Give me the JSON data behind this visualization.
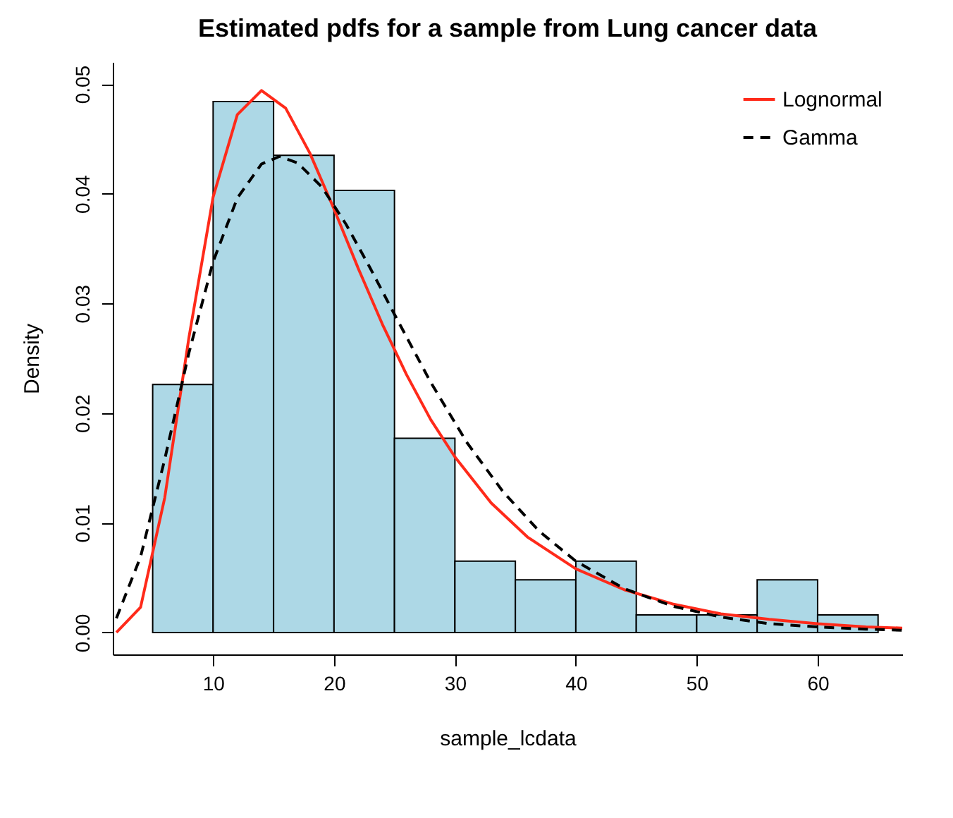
{
  "chart_data": {
    "type": "histogram",
    "title": "Estimated pdfs for a sample from Lung cancer data",
    "xlabel": "sample_lcdata",
    "ylabel": "Density",
    "bins": [
      5,
      10,
      15,
      20,
      25,
      30,
      35,
      40,
      45,
      50,
      55,
      60,
      65
    ],
    "values": [
      0.0226,
      0.0484,
      0.0435,
      0.0403,
      0.0177,
      0.0065,
      0.0048,
      0.0065,
      0.0016,
      0.0016,
      0.0048,
      0.0016
    ],
    "color": "#add8e6",
    "series": [
      {
        "name": "Lognormal",
        "type": "line",
        "color": "#ff2a1a",
        "line_style": "solid",
        "x": [
          2,
          4,
          6,
          8,
          10,
          12,
          14,
          16,
          18,
          20,
          22,
          24,
          26,
          28,
          30,
          33,
          36,
          40,
          44,
          48,
          52,
          56,
          60,
          64,
          67
        ],
        "values": [
          0,
          0.0023,
          0.0123,
          0.0269,
          0.0397,
          0.0472,
          0.0494,
          0.0478,
          0.0437,
          0.0386,
          0.0332,
          0.0281,
          0.0235,
          0.0194,
          0.016,
          0.0118,
          0.0087,
          0.0058,
          0.0039,
          0.0026,
          0.0017,
          0.0012,
          0.0008,
          0.0005,
          0.0004
        ]
      },
      {
        "name": "Gamma",
        "type": "line",
        "color": "#000000",
        "line_style": "dashed",
        "x": [
          2,
          4,
          6,
          8,
          10,
          12,
          14,
          15.5,
          17,
          19,
          21,
          23,
          25,
          28,
          31,
          34,
          37,
          40,
          44,
          48,
          52,
          56,
          60,
          64,
          67
        ],
        "values": [
          0.0013,
          0.0069,
          0.0158,
          0.0255,
          0.0338,
          0.0396,
          0.0427,
          0.0434,
          0.0428,
          0.0406,
          0.0372,
          0.0332,
          0.029,
          0.0228,
          0.0173,
          0.0128,
          0.0092,
          0.0065,
          0.004,
          0.0024,
          0.0014,
          0.0008,
          0.0005,
          0.0003,
          0.0002
        ]
      }
    ],
    "xlim": [
      1.7,
      67
    ],
    "xticks": [
      10,
      20,
      30,
      40,
      50,
      60
    ],
    "ylim": [
      -0.002,
      0.052
    ],
    "yticks": [
      {
        "value": 0,
        "label": "0.00"
      },
      0.01,
      0.02,
      0.03,
      0.04,
      0.05
    ],
    "legend": "top right",
    "grid": false
  }
}
